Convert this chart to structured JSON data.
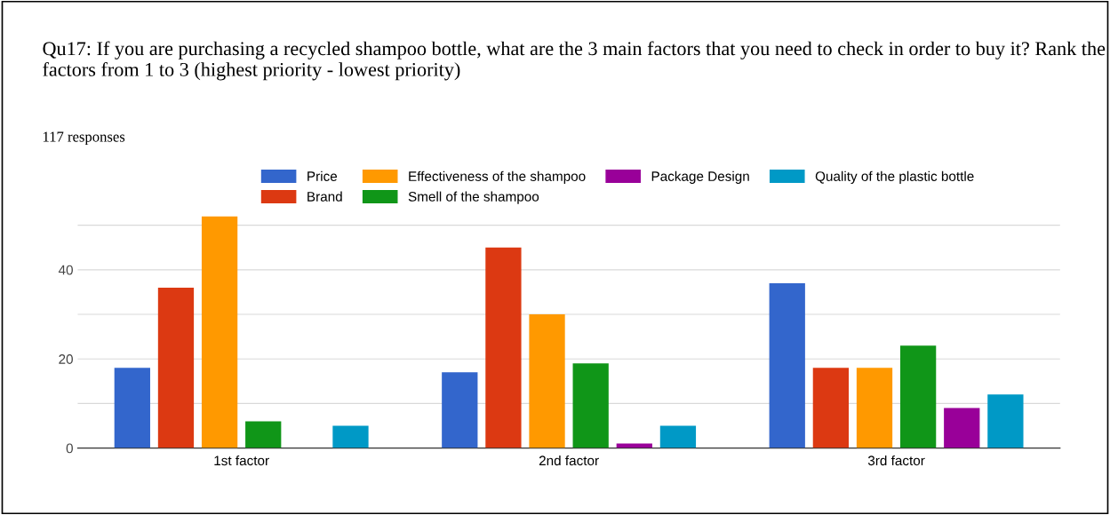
{
  "chart_data": {
    "type": "bar",
    "title": "Qu17: If you are purchasing a recycled shampoo bottle, what are the 3 main factors that you need to check in order to buy it? Rank the factors from 1 to 3 (highest priority - lowest priority)",
    "subtitle": "117 responses",
    "categories": [
      "1st factor",
      "2nd factor",
      "3rd factor"
    ],
    "series": [
      {
        "name": "Price",
        "color": "#3366cc",
        "values": [
          18,
          17,
          37
        ]
      },
      {
        "name": "Brand",
        "color": "#dc3912",
        "values": [
          36,
          45,
          18
        ]
      },
      {
        "name": "Effectiveness of the shampoo",
        "color": "#ff9900",
        "values": [
          52,
          30,
          18
        ]
      },
      {
        "name": "Smell of the shampoo",
        "color": "#109618",
        "values": [
          6,
          19,
          23
        ]
      },
      {
        "name": "Package Design",
        "color": "#990099",
        "values": [
          0,
          1,
          9
        ]
      },
      {
        "name": "Quality of the plastic bottle",
        "color": "#0099c6",
        "values": [
          5,
          5,
          12
        ]
      }
    ],
    "ylim": [
      0,
      52
    ],
    "yticks": [
      0,
      {
        "value": 10,
        "label": null
      },
      20,
      {
        "value": 30,
        "label": null
      },
      40,
      {
        "value": 50,
        "label": null
      }
    ],
    "grid": "y",
    "legend": "top"
  }
}
